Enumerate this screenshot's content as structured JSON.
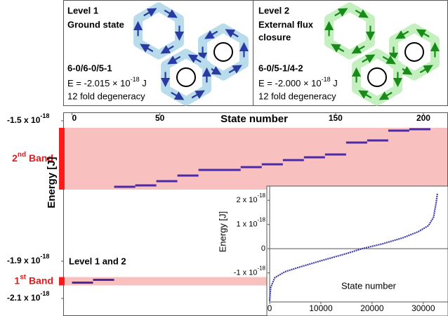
{
  "panels": [
    {
      "title": "Level 1",
      "subtitle": [
        "Ground state"
      ],
      "config": "6-0/6-0/5-1",
      "energy": {
        "prefix": "E = -2.015 × 10",
        "exponent": "-18",
        "unit": "J"
      },
      "degeneracy": "12 fold degeneracy",
      "color": "#2a3aa0",
      "fill": "#b9dcec"
    },
    {
      "title": "Level 2",
      "subtitle": [
        "External flux",
        "closure"
      ],
      "config": "6-0/5-1/4-2",
      "energy": {
        "prefix": "E = -2.000 × 10",
        "exponent": "-18",
        "unit": "J"
      },
      "degeneracy": "12 fold degeneracy",
      "color": "#1a8a1a",
      "fill": "#c4f0c0"
    }
  ],
  "chart_data": [
    {
      "type": "step",
      "xlabel": "State number",
      "ylabel": "Energy [J]",
      "xlim": [
        -5,
        214
      ],
      "xticks": [
        0,
        50,
        150,
        200
      ],
      "ylim": [
        -2.2e-18,
        -1.475e-18
      ],
      "yticks": [
        {
          "value": -2.1e-18,
          "label": "-2.1 x 10",
          "exponent": "-18"
        },
        {
          "value": -1.9e-18,
          "label": "-1.9 x 10",
          "exponent": "-18"
        },
        {
          "value": -1.5e-18,
          "label": "-1.5 x 10",
          "exponent": "-18"
        }
      ],
      "bands": [
        {
          "number": "1",
          "suffix": "st",
          "label": "Band",
          "range": [
            -2.03e-18,
            -1.985e-18
          ]
        },
        {
          "number": "2",
          "suffix": "nd",
          "label": "Band",
          "range": [
            -1.696e-18,
            -1.52e-18
          ]
        }
      ],
      "band_color": "#f9c0c0",
      "band_marker_color": "#ff1a1a",
      "annotation": "Level 1 and 2",
      "series": [
        {
          "color": "#4b2aa8",
          "x_start": [
            0,
            12,
            24,
            36,
            48,
            60,
            72,
            96,
            108,
            120,
            132,
            144,
            156,
            168,
            180,
            192
          ],
          "x_end": [
            12,
            24,
            36,
            48,
            60,
            72,
            96,
            108,
            120,
            132,
            144,
            156,
            168,
            180,
            192,
            204
          ],
          "values": [
            -2.015e-18,
            -2e-18,
            -1.688e-18,
            -1.684e-18,
            -1.672e-18,
            -1.656e-18,
            -1.64e-18,
            -1.632e-18,
            -1.624e-18,
            -1.612e-18,
            -1.604e-18,
            -1.596e-18,
            -1.562e-18,
            -1.556e-18,
            -1.528e-18,
            -1.524e-18
          ]
        }
      ]
    },
    {
      "type": "line",
      "xlabel": "State number",
      "ylabel": "Energy [J]",
      "xlim": [
        0,
        34000
      ],
      "xticks": [
        0,
        10000,
        20000,
        30000
      ],
      "ylim": [
        -2.2e-18,
        2.5e-18
      ],
      "yticks": [
        {
          "value": -1e-18,
          "label": "-1 x 10",
          "exponent": "-18"
        },
        0,
        {
          "value": 1e-18,
          "label": "1 x 10",
          "exponent": "-18"
        },
        {
          "value": 2e-18,
          "label": "2 x 10",
          "exponent": "-18"
        }
      ],
      "series": [
        {
          "color": "#3a3aa8",
          "x": [
            0,
            200,
            1000,
            3000,
            6000,
            10000,
            15000,
            18000,
            22000,
            26000,
            29000,
            31000,
            32000,
            32500,
            32768
          ],
          "values": [
            -2.15e-18,
            -1.6e-18,
            -1.2e-18,
            -9.5e-19,
            -7.5e-19,
            -5e-19,
            -2e-19,
            0,
            2e-19,
            4.5e-19,
            7e-19,
            9.5e-19,
            1.3e-18,
            1.9e-18,
            2.3e-18
          ]
        }
      ]
    }
  ]
}
